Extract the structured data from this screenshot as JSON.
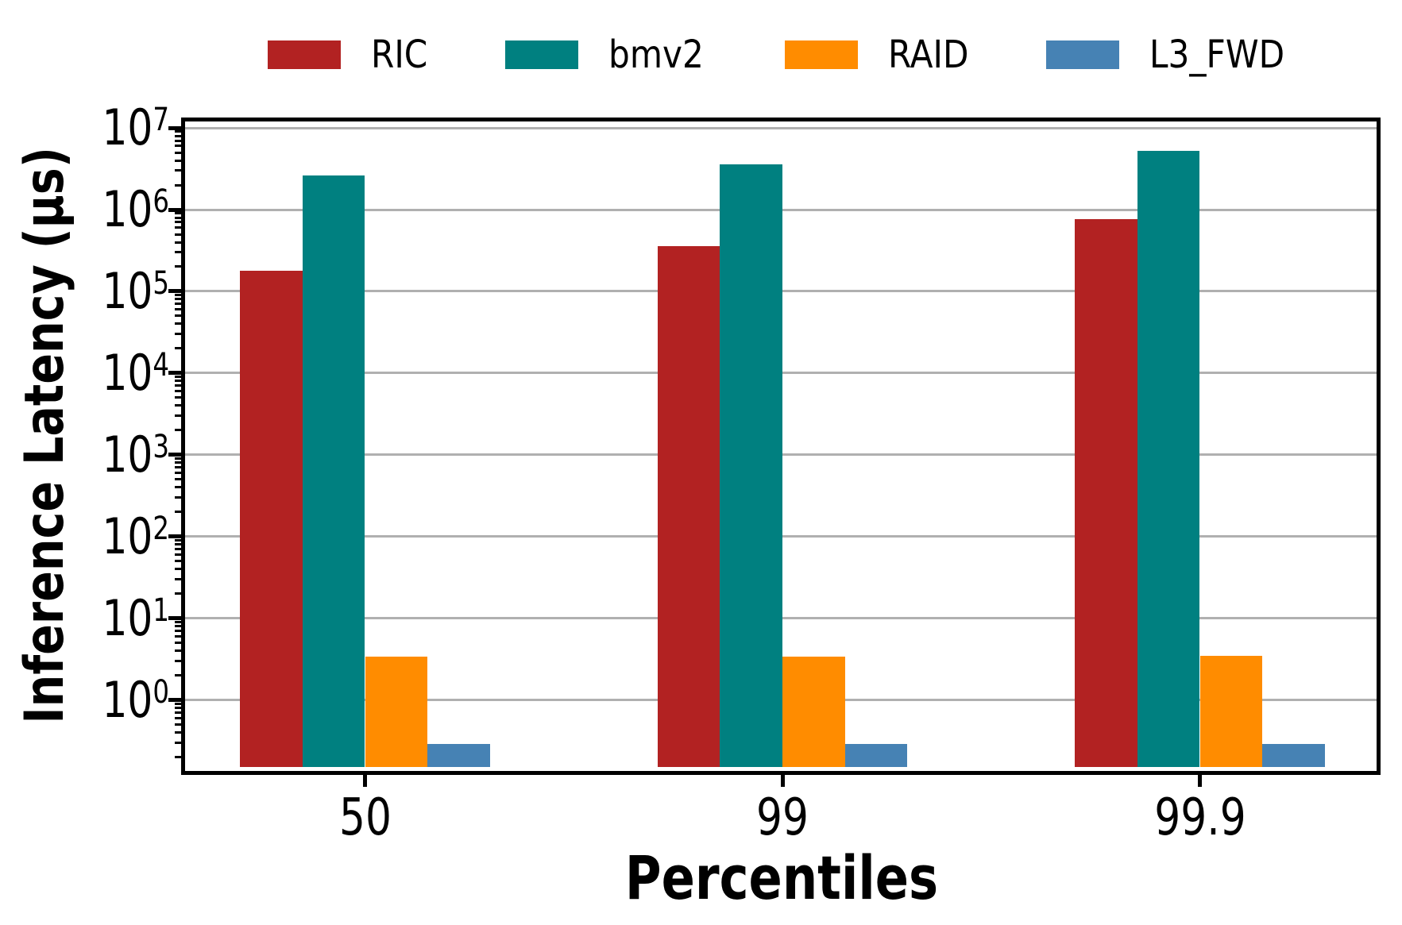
{
  "chart_data": {
    "type": "bar",
    "title": "",
    "xlabel": "Percentiles",
    "ylabel": "Inference Latency (µs)",
    "categories": [
      "50",
      "99",
      "99.9"
    ],
    "series": [
      {
        "name": "RIC",
        "color": "#B22222",
        "values": [
          180000,
          360000,
          760000
        ]
      },
      {
        "name": "bmv2",
        "color": "#008080",
        "values": [
          2600000,
          3600000,
          5200000
        ]
      },
      {
        "name": "RAID",
        "color": "#FF8C00",
        "values": [
          3.4,
          3.4,
          3.5
        ]
      },
      {
        "name": "L3_FWD",
        "color": "#4682B4",
        "values": [
          0.29,
          0.29,
          0.29
        ]
      }
    ],
    "yscale": "log",
    "ylim": [
      0.135,
      12000000
    ],
    "ytick_base": "10",
    "ytick_exponents": [
      0,
      1,
      2,
      3,
      4,
      5,
      6,
      7
    ],
    "grid": true,
    "legend_position": "top"
  },
  "colors": {
    "grid": "#B0B0B0",
    "axis": "#000000",
    "background": "#FFFFFF"
  }
}
